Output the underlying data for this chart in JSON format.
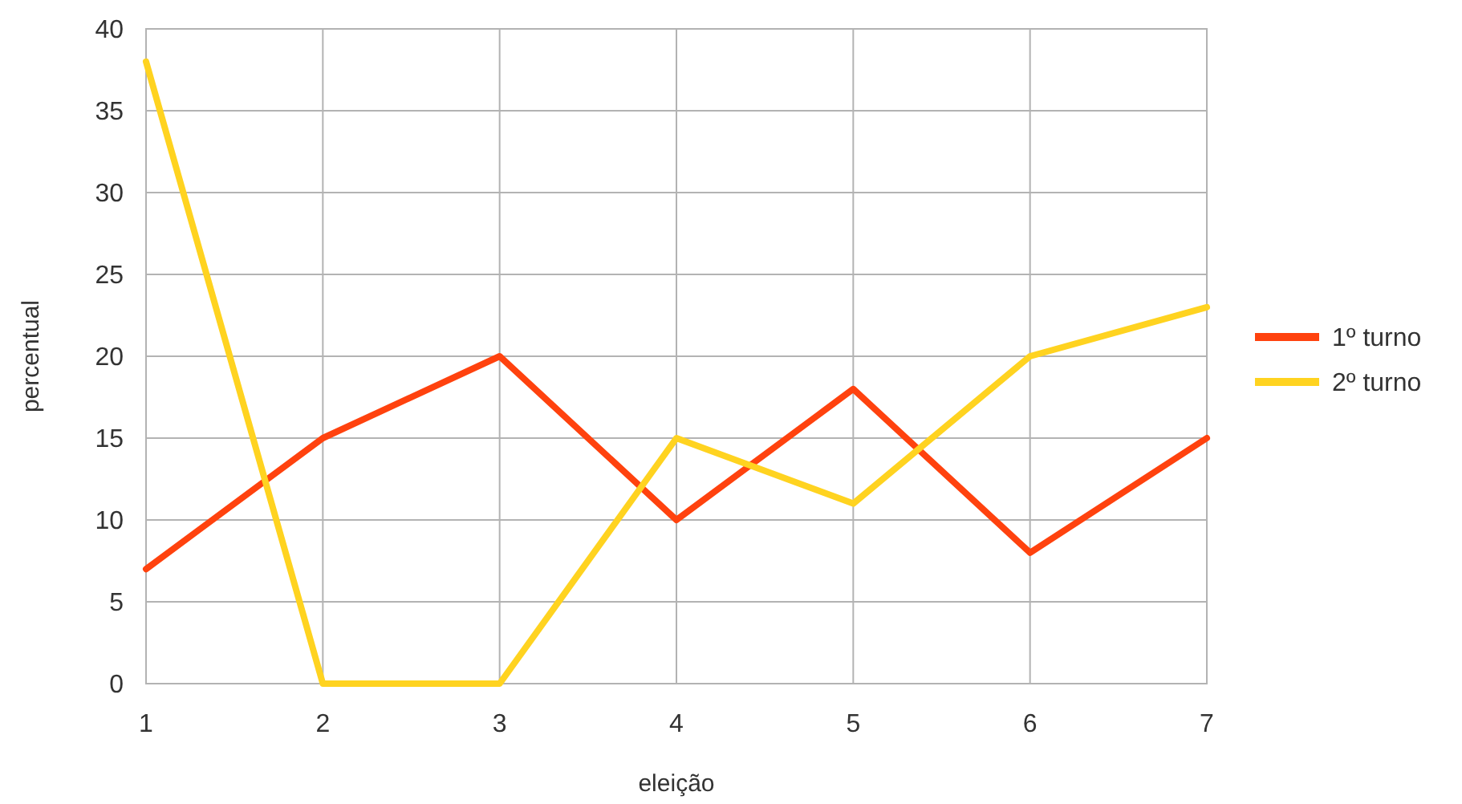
{
  "chart_data": {
    "type": "line",
    "xlabel": "eleição",
    "ylabel": "percentual",
    "x": [
      1,
      2,
      3,
      4,
      5,
      6,
      7
    ],
    "series": [
      {
        "name": "1º turno",
        "color": "#ff420e",
        "values": [
          7,
          15,
          20,
          10,
          18,
          8,
          15
        ]
      },
      {
        "name": "2º turno",
        "color": "#ffd320",
        "values": [
          38,
          0,
          0,
          15,
          11,
          20,
          23
        ]
      }
    ],
    "xlim": [
      1,
      7
    ],
    "xticks": [
      1,
      2,
      3,
      4,
      5,
      6,
      7
    ],
    "ylim": [
      0,
      40
    ],
    "yticks": [
      0,
      5,
      10,
      15,
      20,
      25,
      30,
      35,
      40
    ],
    "grid": true,
    "legend": "right",
    "marker": "none",
    "line_style": "solid"
  }
}
